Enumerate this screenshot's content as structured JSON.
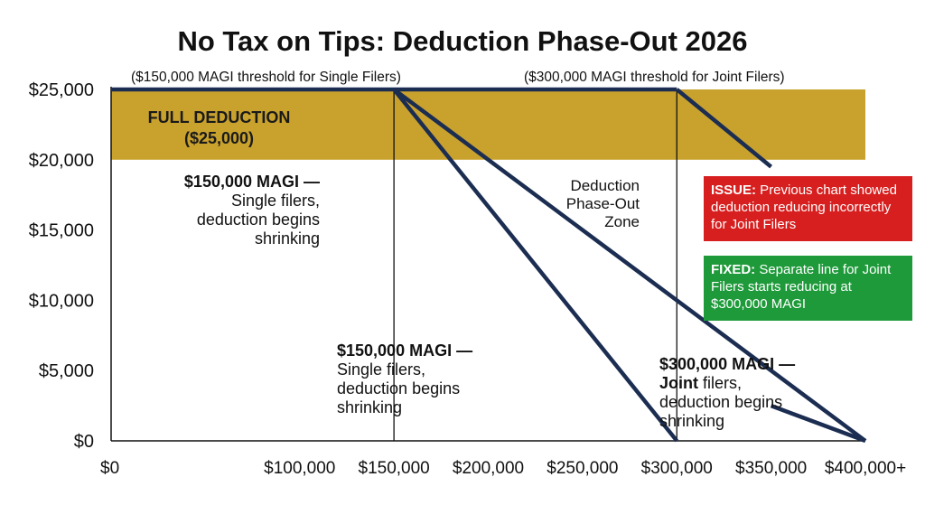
{
  "title": "No Tax on Tips: Deduction Phase-Out 2026",
  "thresholds": {
    "single": "($150,000 MAGI threshold for Single Filers)",
    "joint": "($300,000 MAGI threshold for Joint Filers)"
  },
  "full_deduction": {
    "line1": "FULL DEDUCTION",
    "line2": "($25,000)"
  },
  "annotations": {
    "single_top": {
      "bold": "$150,000 MAGI —",
      "l2": "Single filers,",
      "l3": "deduction begins",
      "l4": "shrinking"
    },
    "zone": {
      "l1": "Deduction",
      "l2": "Phase-Out",
      "l3": "Zone"
    },
    "single_bottom": {
      "bold": "$150,000 MAGI —",
      "l2": "Single filers,",
      "l3": "deduction begins",
      "l4": "shrinking"
    },
    "joint_bottom": {
      "bold": "$300,000 MAGI —",
      "bold2": "Joint",
      "l2": " filers,",
      "l3": "deduction begins",
      "l4": "shrinking"
    }
  },
  "callouts": {
    "issue": {
      "label": "ISSUE:",
      "text": " Previous chart showed deduction reducing incorrectly for Joint Filers",
      "color": "#d71f1f"
    },
    "fixed": {
      "label": "FIXED:",
      "text": " Separate line for Joint Filers starts reducing at $300,000 MAGI",
      "color": "#1e9a3a"
    }
  },
  "chart_data": {
    "type": "line",
    "title": "No Tax on Tips: Deduction Phase-Out 2026",
    "xlabel": "",
    "ylabel": "",
    "xlim": [
      0,
      400000
    ],
    "ylim": [
      0,
      25000
    ],
    "x_ticks": [
      0,
      100000,
      150000,
      200000,
      250000,
      300000,
      350000,
      400000
    ],
    "x_tick_labels": [
      "$0",
      "$100,000",
      "$150,000",
      "$200,000",
      "$250,000",
      "$300,000",
      "$350,000",
      "$400,000+"
    ],
    "y_ticks": [
      0,
      5000,
      10000,
      15000,
      20000,
      25000
    ],
    "y_tick_labels": [
      "$0",
      "$5,000",
      "$10,000",
      "$15,000",
      "$20,000",
      "$25,000"
    ],
    "full_deduction_band": [
      20000,
      25000
    ],
    "vertical_markers": [
      150000,
      300000
    ],
    "lines": [
      {
        "points": [
          [
            0,
            25000
          ],
          [
            300000,
            25000
          ]
        ]
      },
      {
        "points": [
          [
            150000,
            25000
          ],
          [
            300000,
            0
          ]
        ]
      },
      {
        "points": [
          [
            150000,
            25000
          ],
          [
            400000,
            0
          ]
        ]
      },
      {
        "points": [
          [
            300000,
            25000
          ],
          [
            350000,
            19500
          ]
        ]
      },
      {
        "points": [
          [
            350000,
            2500
          ],
          [
            400000,
            0
          ]
        ]
      }
    ],
    "colors": {
      "line": "#1c2d52",
      "band": "#c9a22e",
      "marker": "#111111"
    },
    "grid": false,
    "legend": "none"
  }
}
